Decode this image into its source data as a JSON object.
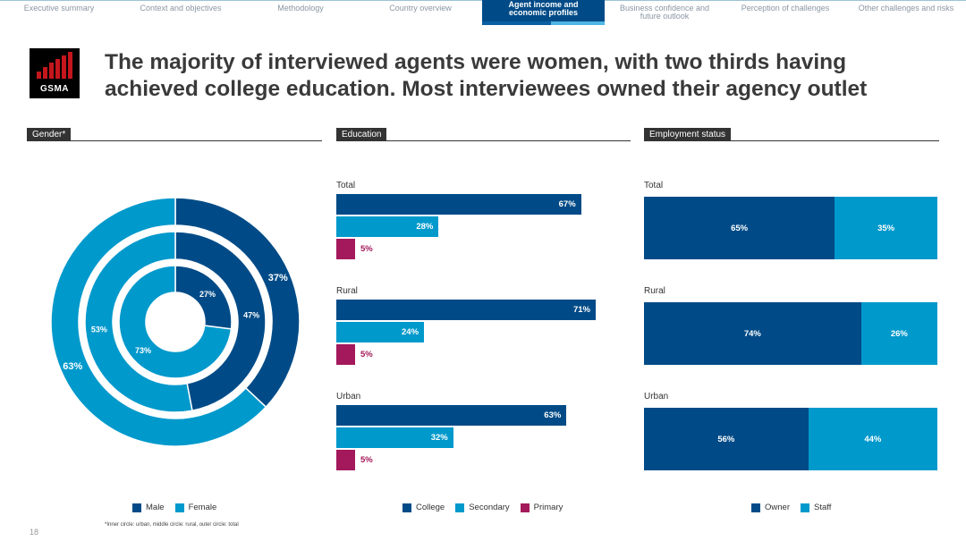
{
  "nav": {
    "tabs": [
      {
        "label": "Executive summary",
        "active": false
      },
      {
        "label": "Context and objectives",
        "active": false
      },
      {
        "label": "Methodology",
        "active": false
      },
      {
        "label": "Country overview",
        "active": false
      },
      {
        "label": "Agent income and economic profiles",
        "active": true
      },
      {
        "label": "Business confidence and future outlook",
        "active": false
      },
      {
        "label": "Perception of challenges",
        "active": false
      },
      {
        "label": "Other challenges and risks",
        "active": false
      }
    ]
  },
  "logo": {
    "text": "GSMA"
  },
  "title": "The majority of interviewed agents were women, with two thirds having achieved college education. Most interviewees owned their agency outlet",
  "colors": {
    "dark_blue": "#004b87",
    "light_blue": "#0099cc",
    "magenta": "#a3195b"
  },
  "chart_data": [
    {
      "type": "pie",
      "section_label": "Gender*",
      "style": "nested-donut",
      "rings": [
        {
          "name": "Urban",
          "position": "inner",
          "values": {
            "Male": 27,
            "Female": 73
          }
        },
        {
          "name": "Rural",
          "position": "middle",
          "values": {
            "Male": 47,
            "Female": 53
          }
        },
        {
          "name": "Total",
          "position": "outer",
          "values": {
            "Male": 37,
            "Female": 63
          }
        }
      ],
      "legend": [
        "Male",
        "Female"
      ],
      "footnote": "*Inner circle: urban, middle circle: rural, outer circle: total"
    },
    {
      "type": "bar",
      "orientation": "horizontal",
      "section_label": "Education",
      "groups": [
        {
          "label": "Total",
          "values": {
            "College": 67,
            "Secondary": 28,
            "Primary": 5
          }
        },
        {
          "label": "Rural",
          "values": {
            "College": 71,
            "Secondary": 24,
            "Primary": 5
          }
        },
        {
          "label": "Urban",
          "values": {
            "College": 63,
            "Secondary": 32,
            "Primary": 5
          }
        }
      ],
      "legend": [
        "College",
        "Secondary",
        "Primary"
      ]
    },
    {
      "type": "bar",
      "orientation": "horizontal",
      "stacked": true,
      "section_label": "Employment status",
      "groups": [
        {
          "label": "Total",
          "values": {
            "Owner": 65,
            "Staff": 35
          }
        },
        {
          "label": "Rural",
          "values": {
            "Owner": 74,
            "Staff": 26
          }
        },
        {
          "label": "Urban",
          "values": {
            "Owner": 56,
            "Staff": 44
          }
        }
      ],
      "legend": [
        "Owner",
        "Staff"
      ]
    }
  ],
  "page_number": "18"
}
